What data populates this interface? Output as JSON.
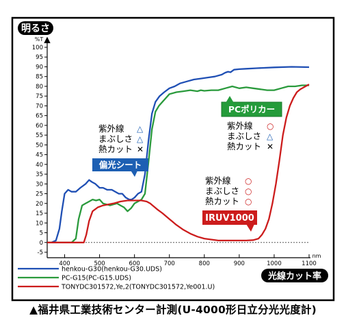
{
  "chart_data": {
    "type": "line",
    "y_axis_label": "明るさ",
    "y_unit": "%T",
    "x_axis_label": "光線カット率",
    "x_unit": "nm",
    "xlim": [
      350,
      1100
    ],
    "ylim": [
      -5,
      100
    ],
    "x_ticks": [
      400,
      500,
      600,
      700,
      800,
      900,
      1000,
      1100
    ],
    "y_ticks": [
      -5,
      0,
      5,
      10,
      15,
      20,
      25,
      30,
      35,
      40,
      45,
      50,
      55,
      60,
      65,
      70,
      75,
      80,
      85,
      90,
      95,
      100
    ],
    "grid": false,
    "legend_position": "bottom-left",
    "series": [
      {
        "name": "henkou-G30(henkou-G30.UDS)",
        "color": "#1f4fb4",
        "x": [
          350,
          362,
          375,
          385,
          392,
          400,
          410,
          420,
          432,
          445,
          460,
          470,
          478,
          488,
          500,
          510,
          522,
          535,
          545,
          555,
          565,
          575,
          585,
          592,
          600,
          610,
          620,
          630,
          640,
          650,
          660,
          672,
          685,
          700,
          715,
          730,
          750,
          770,
          790,
          810,
          830,
          850,
          860,
          868,
          875,
          885,
          900,
          920,
          950,
          1000,
          1050,
          1100
        ],
        "y": [
          0,
          0,
          1,
          7,
          16,
          25,
          27,
          26,
          26,
          28,
          30,
          32,
          31,
          30,
          28,
          28,
          27,
          27,
          26,
          25,
          25,
          23,
          22,
          22,
          23,
          25,
          26,
          35,
          52,
          66,
          72,
          75,
          77,
          79,
          80,
          81.5,
          82.5,
          83.5,
          84,
          84.5,
          85,
          86,
          87,
          87.5,
          87.2,
          88.5,
          88.8,
          89,
          89.3,
          89.7,
          90,
          89.8
        ]
      },
      {
        "name": "PC-G15(PC-G15.UDS)",
        "color": "#2a9a3c",
        "x": [
          350,
          420,
          432,
          440,
          450,
          460,
          470,
          480,
          490,
          500,
          510,
          520,
          530,
          540,
          550,
          560,
          570,
          580,
          590,
          600,
          610,
          620,
          630,
          640,
          650,
          660,
          670,
          680,
          690,
          700,
          720,
          740,
          760,
          780,
          790,
          800,
          820,
          840,
          860,
          880,
          900,
          920,
          940,
          960,
          980,
          1000,
          1020,
          1040,
          1060,
          1080,
          1100
        ],
        "y": [
          0,
          0,
          2,
          12,
          19,
          20,
          21,
          22,
          21.5,
          22,
          20,
          19.5,
          19,
          19.5,
          20,
          19,
          18,
          16,
          17.5,
          20,
          21,
          22,
          25,
          41,
          58,
          67,
          70,
          72,
          74,
          76,
          77,
          77.5,
          78,
          77.5,
          78,
          77.7,
          78,
          78,
          79,
          80,
          79,
          79.5,
          79,
          78.5,
          78,
          78,
          79,
          80,
          80,
          80.5,
          80.5
        ]
      },
      {
        "name": "TONYDC301572,Ye,2(TONYDC301572,Ye001.U)",
        "color": "#cc1c1c",
        "x": [
          350,
          455,
          462,
          470,
          480,
          495,
          510,
          525,
          540,
          560,
          580,
          600,
          620,
          635,
          645,
          655,
          665,
          680,
          700,
          720,
          740,
          760,
          780,
          800,
          820,
          840,
          860,
          880,
          900,
          920,
          940,
          955,
          965,
          975,
          985,
          995,
          1005,
          1015,
          1025,
          1035,
          1045,
          1055,
          1065,
          1075,
          1085,
          1095,
          1100
        ],
        "y": [
          0,
          0,
          4,
          11,
          16,
          18,
          19,
          19.5,
          20,
          21,
          21.5,
          21.5,
          21.5,
          21,
          20,
          18.5,
          17,
          15,
          12,
          9,
          6.5,
          4.5,
          3,
          2,
          1.5,
          1,
          1,
          1,
          1,
          1,
          1.2,
          2,
          4,
          7,
          12,
          20,
          30,
          42,
          55,
          64,
          70,
          74,
          77,
          78.5,
          79.5,
          80.5,
          81
        ]
      }
    ],
    "callouts": [
      {
        "label": "偏光シート",
        "color": "#1d5fb3",
        "properties": [
          {
            "name": "紫外線",
            "mark": "△"
          },
          {
            "name": "まぶしさ",
            "mark": "△"
          },
          {
            "name": "熱カット",
            "mark": "✕"
          }
        ]
      },
      {
        "label": "PCポリカー",
        "color": "#249b3a",
        "properties": [
          {
            "name": "紫外線",
            "mark": "○"
          },
          {
            "name": "まぶしさ",
            "mark": "△"
          },
          {
            "name": "熱カット",
            "mark": "✕"
          }
        ]
      },
      {
        "label": "IRUV1000",
        "color": "#cc1c1c",
        "properties": [
          {
            "name": "紫外線",
            "mark": "○"
          },
          {
            "name": "まぶしさ",
            "mark": "○"
          },
          {
            "name": "熱カット",
            "mark": "○"
          }
        ]
      }
    ],
    "caption": "▲福井県工業技術センター計測(U-4000形日立分光光度計)"
  },
  "style": {
    "mark_color_triangle": "#1d5fb3",
    "mark_color_circle": "#cc1c1c",
    "mark_color_cross": "#000000",
    "zero_line_color": "#555555"
  }
}
